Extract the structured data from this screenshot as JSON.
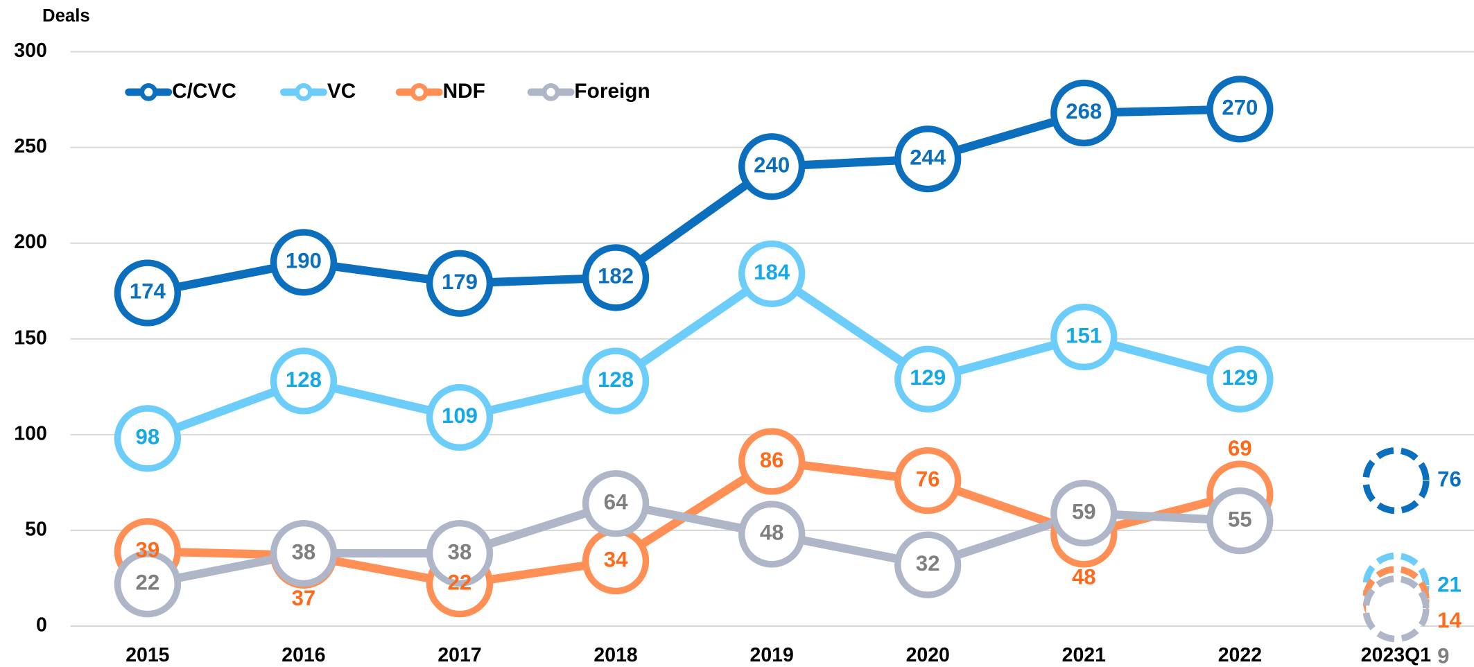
{
  "chart_data": {
    "type": "line",
    "y_label": "Deals",
    "categories": [
      "2015",
      "2016",
      "2017",
      "2018",
      "2019",
      "2020",
      "2021",
      "2022",
      "2023Q1"
    ],
    "series": [
      {
        "name": "C/CVC",
        "color": "#0b6fbd",
        "label_color": "#0b6fbd",
        "values": [
          174,
          190,
          179,
          182,
          240,
          244,
          268,
          270,
          76
        ]
      },
      {
        "name": "VC",
        "color": "#6ccdfb",
        "label_color": "#14a8e6",
        "values": [
          98,
          128,
          109,
          128,
          184,
          129,
          151,
          129,
          21
        ]
      },
      {
        "name": "NDF",
        "color": "#ff8f55",
        "label_color": "#ff6a1a",
        "values": [
          39,
          37,
          22,
          34,
          86,
          76,
          48,
          69,
          14
        ]
      },
      {
        "name": "Foreign",
        "color": "#aeb6c8",
        "label_color": "#7f7f7f",
        "values": [
          22,
          38,
          38,
          64,
          48,
          32,
          59,
          55,
          9
        ]
      }
    ],
    "ylim": [
      0,
      300
    ],
    "yticks": [
      0,
      50,
      100,
      150,
      200,
      250,
      300
    ],
    "grid": true,
    "legend": "top-left"
  }
}
